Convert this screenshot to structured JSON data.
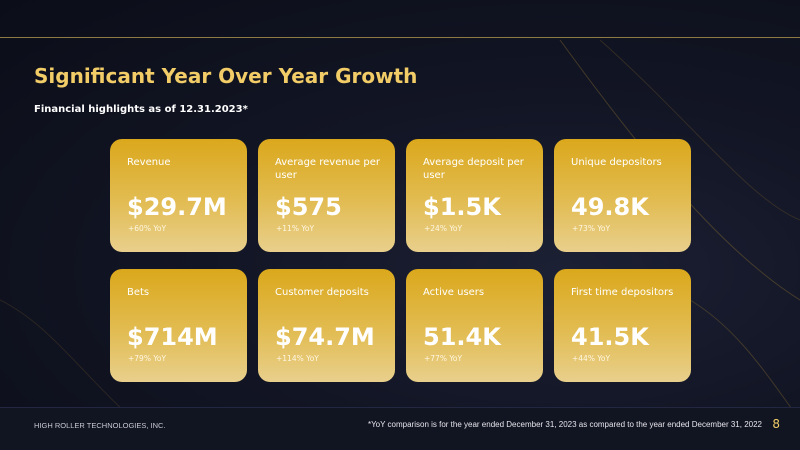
{
  "slide": {
    "title": "Significant Year Over Year Growth",
    "subtitle": "Financial highlights as of 12.31.2023*"
  },
  "metrics": [
    {
      "label": "Revenue",
      "value": "$29.7M",
      "yoy": "+60% YoY"
    },
    {
      "label": "Average revenue per user",
      "value": "$575",
      "yoy": "+11% YoY"
    },
    {
      "label": "Average deposit per user",
      "value": "$1.5K",
      "yoy": "+24% YoY"
    },
    {
      "label": "Unique depositors",
      "value": "49.8K",
      "yoy": "+73% YoY"
    },
    {
      "label": "Bets",
      "value": "$714M",
      "yoy": "+79% YoY"
    },
    {
      "label": "Customer deposits",
      "value": "$74.7M",
      "yoy": "+114% YoY"
    },
    {
      "label": "Active users",
      "value": "51.4K",
      "yoy": "+77% YoY"
    },
    {
      "label": "First time depositors",
      "value": "41.5K",
      "yoy": "+44% YoY"
    }
  ],
  "footer": {
    "company": "HIGH ROLLER TECHNOLOGIES, INC.",
    "footnote": "*YoY comparison is for the year ended December 31, 2023 as compared to the year ended December 31, 2022",
    "page_number": "8"
  },
  "colors": {
    "accent_gold": "#f1cc67",
    "card_gold_top": "#dba81c",
    "card_gold_bottom": "#e8cf8c",
    "background": "#121524"
  }
}
